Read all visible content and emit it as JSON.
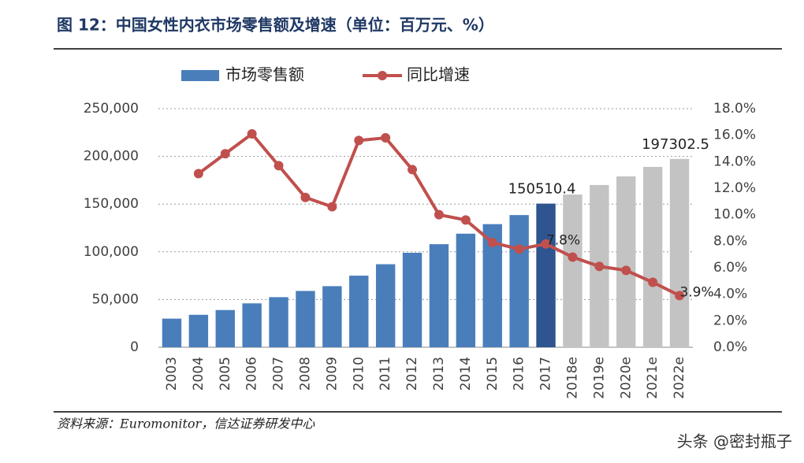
{
  "chart_data": {
    "type": "bar-line",
    "title": "图 12：中国女性内衣市场零售额及增速（单位：百万元、%）",
    "source": "资料来源：Euromonitor，信达证券研发中心",
    "watermark": "头条 @密封瓶子",
    "categories": [
      "2003",
      "2004",
      "2005",
      "2006",
      "2007",
      "2008",
      "2009",
      "2010",
      "2011",
      "2012",
      "2013",
      "2014",
      "2015",
      "2016",
      "2017",
      "2018e",
      "2019e",
      "2020e",
      "2021e",
      "2022e"
    ],
    "series": [
      {
        "name": "市场零售额",
        "type": "bar",
        "color": "#4a7ebb",
        "colors": [
          "#4a7ebb",
          "#4a7ebb",
          "#4a7ebb",
          "#4a7ebb",
          "#4a7ebb",
          "#4a7ebb",
          "#4a7ebb",
          "#4a7ebb",
          "#4a7ebb",
          "#4a7ebb",
          "#4a7ebb",
          "#4a7ebb",
          "#4a7ebb",
          "#4a7ebb",
          "#2f5590",
          "#c3c3c3",
          "#c3c3c3",
          "#c3c3c3",
          "#c3c3c3",
          "#c3c3c3"
        ],
        "values": [
          30000,
          34000,
          39000,
          46000,
          52500,
          59000,
          64000,
          75000,
          87000,
          99000,
          108000,
          119000,
          129000,
          138500,
          150510.4,
          160000,
          170000,
          179000,
          189000,
          197302.5
        ],
        "value_labels": [
          null,
          null,
          null,
          null,
          null,
          null,
          null,
          null,
          null,
          null,
          null,
          null,
          null,
          null,
          "150510.4",
          null,
          null,
          null,
          null,
          "197302.5"
        ]
      },
      {
        "name": "同比增速",
        "type": "line",
        "axis": "y2",
        "color": "#c0504d",
        "values": [
          null,
          13.1,
          14.6,
          16.1,
          13.7,
          11.3,
          10.6,
          15.6,
          15.8,
          13.4,
          10.0,
          9.6,
          7.9,
          7.4,
          7.8,
          6.8,
          6.1,
          5.8,
          4.9,
          3.9
        ],
        "value_labels": [
          null,
          null,
          null,
          null,
          null,
          null,
          null,
          null,
          null,
          null,
          null,
          null,
          null,
          null,
          "7.8%",
          null,
          null,
          null,
          null,
          "3.9%"
        ]
      }
    ],
    "ylim": [
      0,
      250000
    ],
    "yticks": [
      0,
      {
        "value": 50000,
        "label": "50,000"
      },
      {
        "value": 100000,
        "label": "100,000"
      },
      {
        "value": 150000,
        "label": "150,000"
      },
      {
        "value": 200000,
        "label": "200,000"
      },
      {
        "value": 250000,
        "label": "250,000"
      }
    ],
    "y2lim": [
      0,
      18
    ],
    "y2ticks": [
      {
        "value": 0,
        "label": "0.0%"
      },
      {
        "value": 2,
        "label": "2.0%"
      },
      {
        "value": 4,
        "label": "4.0%"
      },
      {
        "value": 6,
        "label": "6.0%"
      },
      {
        "value": 8,
        "label": "8.0%"
      },
      {
        "value": 10,
        "label": "10.0%"
      },
      {
        "value": 12,
        "label": "12.0%"
      },
      {
        "value": 14,
        "label": "14.0%"
      },
      {
        "value": 16,
        "label": "16.0%"
      },
      {
        "value": 18,
        "label": "18.0%"
      }
    ],
    "grid": true
  }
}
